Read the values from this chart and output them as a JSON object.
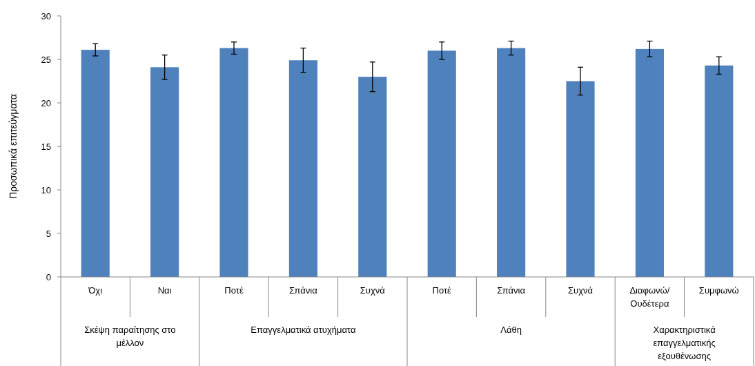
{
  "chart_data": {
    "type": "bar",
    "ylabel": "Προσωπικά επιτεύγματα",
    "categories": [
      "Όχι",
      "Ναι",
      "Ποτέ",
      "Σπάνια",
      "Συχνά",
      "Ποτέ",
      "Σπάνια",
      "Συχνά",
      "Διαφωνώ/ Ουδέτερα",
      "Συμφωνώ"
    ],
    "values": [
      26.1,
      24.1,
      26.3,
      24.9,
      23.0,
      26.0,
      26.3,
      22.5,
      26.2,
      24.3
    ],
    "errors": [
      0.7,
      1.4,
      0.7,
      1.4,
      1.7,
      1.0,
      0.8,
      1.6,
      0.9,
      1.0
    ],
    "color": "#4f81bd",
    "ylim": [
      0,
      30
    ],
    "yticks": [
      0,
      5,
      10,
      15,
      20,
      25,
      30
    ],
    "annotations": [
      "Σκέψη παραίτησης στο μέλλον",
      "Επαγγελματικά ατυχήματα",
      "Λάθη",
      "Χαρακτηριστικά επαγγελματικής εξουθένωσης"
    ]
  }
}
